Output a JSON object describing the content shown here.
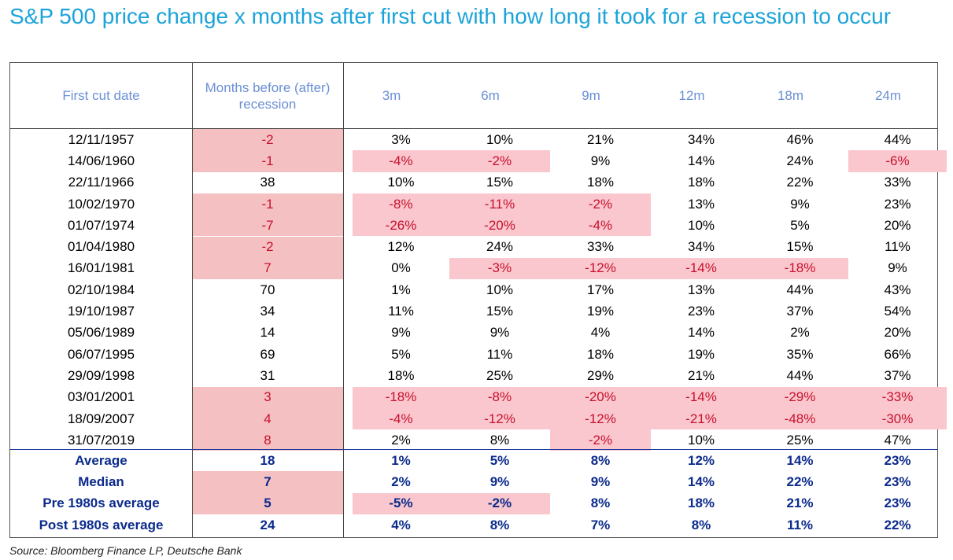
{
  "title": "S&P 500 price change x months after first cut with how long it took for a recession to occur",
  "source": "Source: Bloomberg Finance LP, Deutsche Bank",
  "colors": {
    "title": "#1ba3d9",
    "header": "#6b8fd6",
    "highlight": "#f9c7cd",
    "negative": "#c8102e",
    "summary": "#0b2a8c"
  },
  "chart_data": {
    "type": "table",
    "columns": [
      "First cut date",
      "Months before (after) recession",
      "3m",
      "6m",
      "9m",
      "12m",
      "18m",
      "24m"
    ],
    "rows": [
      [
        "12/11/1957",
        "-2",
        "3%",
        "10%",
        "21%",
        "34%",
        "46%",
        "44%"
      ],
      [
        "14/06/1960",
        "-1",
        "-4%",
        "-2%",
        "9%",
        "14%",
        "24%",
        "-6%"
      ],
      [
        "22/11/1966",
        "38",
        "10%",
        "15%",
        "18%",
        "18%",
        "22%",
        "33%"
      ],
      [
        "10/02/1970",
        "-1",
        "-8%",
        "-11%",
        "-2%",
        "13%",
        "9%",
        "23%"
      ],
      [
        "01/07/1974",
        "-7",
        "-26%",
        "-20%",
        "-4%",
        "10%",
        "5%",
        "20%"
      ],
      [
        "01/04/1980",
        "-2",
        "12%",
        "24%",
        "33%",
        "34%",
        "15%",
        "11%"
      ],
      [
        "16/01/1981",
        "7",
        "0%",
        "-3%",
        "-12%",
        "-14%",
        "-18%",
        "9%"
      ],
      [
        "02/10/1984",
        "70",
        "1%",
        "10%",
        "17%",
        "13%",
        "44%",
        "43%"
      ],
      [
        "19/10/1987",
        "34",
        "11%",
        "15%",
        "19%",
        "23%",
        "37%",
        "54%"
      ],
      [
        "05/06/1989",
        "14",
        "9%",
        "9%",
        "4%",
        "14%",
        "2%",
        "20%"
      ],
      [
        "06/07/1995",
        "69",
        "5%",
        "11%",
        "18%",
        "19%",
        "35%",
        "66%"
      ],
      [
        "29/09/1998",
        "31",
        "18%",
        "25%",
        "29%",
        "21%",
        "44%",
        "37%"
      ],
      [
        "03/01/2001",
        "3",
        "-18%",
        "-8%",
        "-20%",
        "-14%",
        "-29%",
        "-33%"
      ],
      [
        "18/09/2007",
        "4",
        "-4%",
        "-12%",
        "-12%",
        "-21%",
        "-48%",
        "-30%"
      ],
      [
        "31/07/2019",
        "8",
        "2%",
        "8%",
        "-2%",
        "10%",
        "25%",
        "47%"
      ]
    ],
    "summary_rows": [
      [
        "Average",
        "18",
        "1%",
        "5%",
        "8%",
        "12%",
        "14%",
        "23%"
      ],
      [
        "Median",
        "7",
        "2%",
        "9%",
        "9%",
        "14%",
        "22%",
        "23%"
      ],
      [
        "Pre 1980s average",
        "5",
        "-5%",
        "-2%",
        "8%",
        "18%",
        "21%",
        "23%"
      ],
      [
        "Post 1980s average",
        "24",
        "4%",
        "8%",
        "7%",
        "8%",
        "11%",
        "22%"
      ]
    ]
  }
}
